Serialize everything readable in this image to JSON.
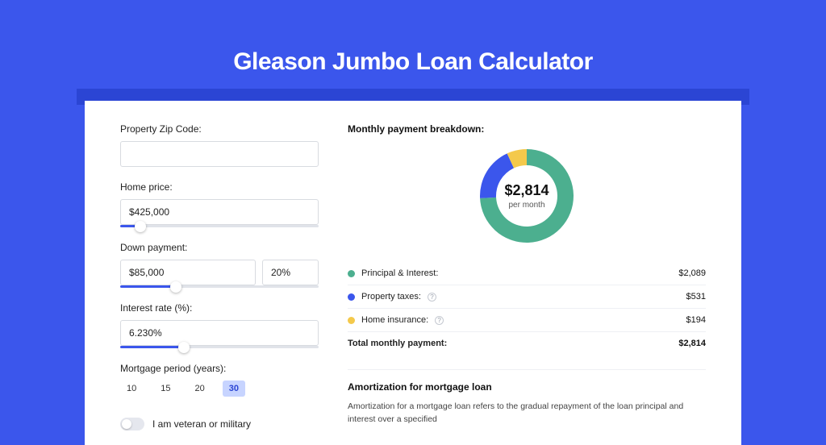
{
  "colors": {
    "page_bg": "#3b56ec",
    "shadow_strip": "#2b45d4",
    "accent": "#3b56ec",
    "donut_green": "#4caf8f",
    "donut_blue": "#3b56ec",
    "donut_yellow": "#f4c94b"
  },
  "title": "Gleason Jumbo Loan Calculator",
  "left": {
    "zip": {
      "label": "Property Zip Code:",
      "value": ""
    },
    "price": {
      "label": "Home price:",
      "value": "$425,000",
      "slider_pct": 10
    },
    "down": {
      "label": "Down payment:",
      "amount": "$85,000",
      "pct": "20%",
      "slider_pct": 28
    },
    "rate": {
      "label": "Interest rate (%):",
      "value": "6.230%",
      "slider_pct": 32
    },
    "period": {
      "label": "Mortgage period (years):",
      "options": [
        "10",
        "15",
        "20",
        "30"
      ],
      "active": "30"
    },
    "veteran": {
      "label": "I am veteran or military",
      "on": false
    }
  },
  "right": {
    "breakdown_title": "Monthly payment breakdown:",
    "center_amount": "$2,814",
    "center_sub": "per month",
    "slices": [
      {
        "label": "Principal & Interest:",
        "value": "$2,089",
        "pct": 74.2,
        "color": "#4caf8f"
      },
      {
        "label": "Property taxes:",
        "value": "$531",
        "pct": 18.9,
        "color": "#3b56ec",
        "info": true
      },
      {
        "label": "Home insurance:",
        "value": "$194",
        "pct": 6.9,
        "color": "#f4c94b",
        "info": true
      }
    ],
    "total_label": "Total monthly payment:",
    "total_value": "$2,814",
    "amort_title": "Amortization for mortgage loan",
    "amort_text": "Amortization for a mortgage loan refers to the gradual repayment of the loan principal and interest over a specified"
  }
}
